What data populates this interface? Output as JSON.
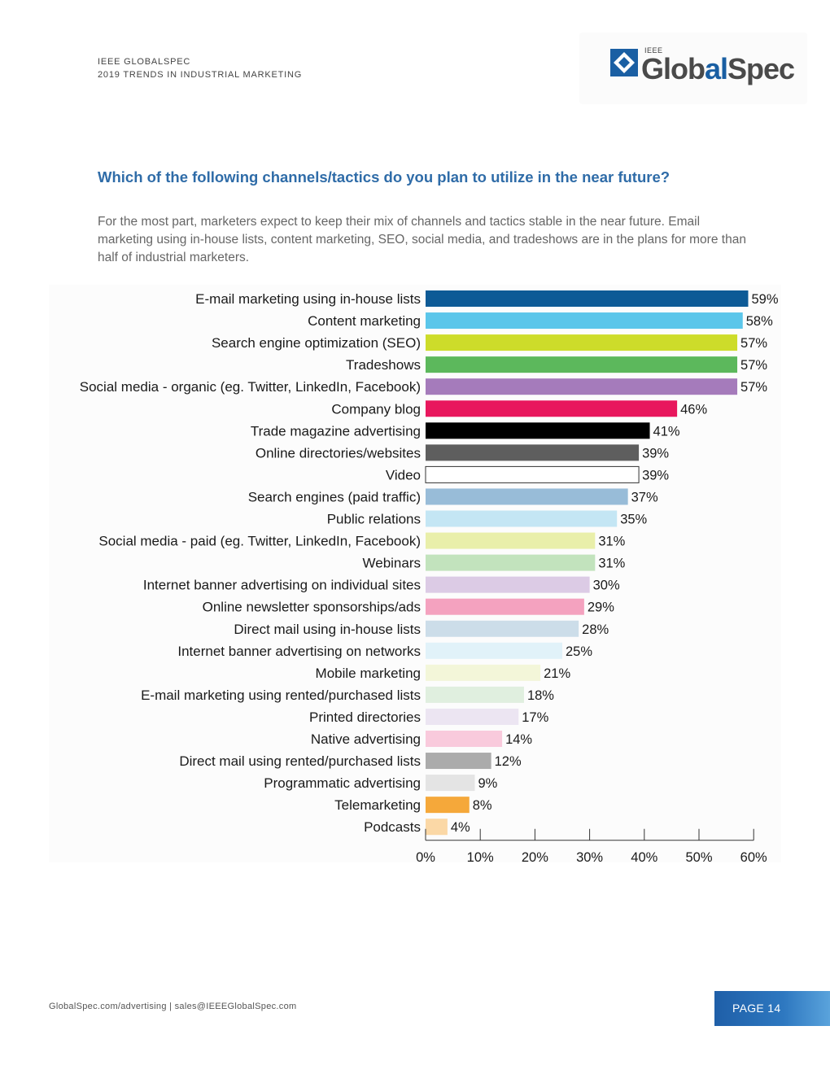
{
  "header": {
    "line1": "IEEE GLOBALSPEC",
    "line2": "2019 TRENDS IN INDUSTRIAL MARKETING"
  },
  "logo": {
    "small": "IEEE",
    "word_a": "Glob",
    "word_b": "al",
    "word_c": "Spec"
  },
  "question": "Which of the following channels/tactics do you plan to utilize in the near future?",
  "subtext": "For the most part, marketers expect to keep their mix of channels and tactics stable in the near future. Email marketing using in-house lists, content marketing, SEO, social media, and tradeshows are in the plans for more than half of industrial marketers.",
  "chart_data": {
    "type": "bar",
    "orientation": "horizontal",
    "title": "",
    "xlim": [
      0,
      60
    ],
    "x_ticks": [
      "0%",
      "10%",
      "20%",
      "30%",
      "40%",
      "50%",
      "60%"
    ],
    "categories": [
      "E-mail marketing using in-house lists",
      "Content marketing",
      "Search engine optimization (SEO)",
      "Tradeshows",
      "Social media - organic (eg. Twitter, LinkedIn, Facebook)",
      "Company blog",
      "Trade magazine advertising",
      "Online directories/websites",
      "Video",
      "Search engines (paid traffic)",
      "Public relations",
      "Social media - paid (eg. Twitter, LinkedIn, Facebook)",
      "Webinars",
      "Internet banner advertising on individual sites",
      "Online newsletter sponsorships/ads",
      "Direct mail using in-house lists",
      "Internet banner advertising on networks",
      "Mobile marketing",
      "E-mail marketing using rented/purchased lists",
      "Printed directories",
      "Native advertising",
      "Direct mail using rented/purchased lists",
      "Programmatic advertising",
      "Telemarketing",
      "Podcasts"
    ],
    "values": [
      59,
      58,
      57,
      57,
      57,
      46,
      41,
      39,
      39,
      37,
      35,
      31,
      31,
      30,
      29,
      28,
      25,
      21,
      18,
      17,
      14,
      12,
      9,
      8,
      4
    ],
    "value_labels": [
      "59%",
      "58%",
      "57%",
      "57%",
      "57%",
      "46%",
      "41%",
      "39%",
      "39%",
      "37%",
      "35%",
      "31%",
      "31%",
      "30%",
      "29%",
      "28%",
      "25%",
      "21%",
      "18%",
      "17%",
      "14%",
      "12%",
      "9%",
      "8%",
      "4%"
    ],
    "colors": [
      "#0d5a96",
      "#5bc6ea",
      "#cddc2a",
      "#5cb85c",
      "#a57bbb",
      "#e8175d",
      "#000000",
      "#5e5e5e",
      "#ffffff",
      "#98bcd8",
      "#c4e6f4",
      "#e9efaa",
      "#c2e3bd",
      "#dccbe5",
      "#f4a2bf",
      "#ccdde9",
      "#e1f2f9",
      "#f3f6d9",
      "#e0efdf",
      "#ece5f2",
      "#f9cadc",
      "#ababab",
      "#e4e4e4",
      "#f5a83a",
      "#fbd8a6"
    ]
  },
  "footer": {
    "left": "GlobalSpec.com/advertising  |  sales@IEEEGlobalSpec.com",
    "page": "PAGE 14"
  }
}
